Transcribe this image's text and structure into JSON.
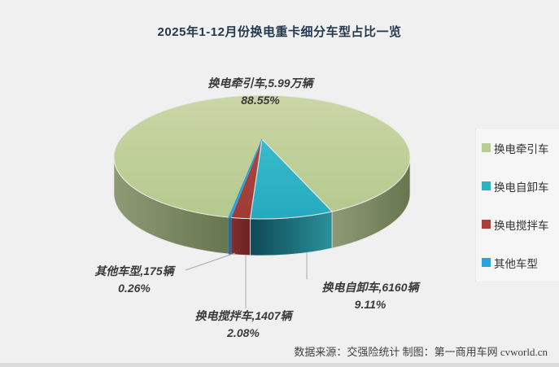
{
  "title": "2025年1-12月份换电重卡细分车型占比一览",
  "source_note": "数据来源：交强险统计 制图：第一商用车网 cvworld.cn",
  "chart_data": {
    "type": "pie",
    "style": "3d",
    "title": "2025年1-12月份换电重卡细分车型占比一览",
    "unit": "辆",
    "start_angle_deg": 193,
    "legend_position": "right",
    "slices": [
      {
        "name": "换电牵引车",
        "value": 59900,
        "value_label": "5.99万辆",
        "callout_label": "换电牵引车,5.99万辆",
        "pct": 88.55,
        "pct_label": "88.55%",
        "color": "#b9cc92",
        "top_from": "#cbd6a6",
        "top_to": "#b4c98d",
        "side_from": "#8d9a74",
        "side_to": "#68764f"
      },
      {
        "name": "换电自卸车",
        "value": 6160,
        "value_label": "6160辆",
        "callout_label": "换电自卸车,6160辆",
        "pct": 9.11,
        "pct_label": "9.11%",
        "color": "#2bb3c4",
        "top_from": "#38bcc9",
        "top_to": "#25a9bf",
        "side_from": "#0e4956",
        "side_to": "#2b919b"
      },
      {
        "name": "换电搅拌车",
        "value": 1407,
        "value_label": "1407辆",
        "callout_label": "换电搅拌车,1407辆",
        "pct": 2.08,
        "pct_label": "2.08%",
        "color": "#a6423c",
        "top_from": "#ad4741",
        "top_to": "#9d3b36",
        "side_from": "#832f2b",
        "side_to": "#6a2321"
      },
      {
        "name": "其他车型",
        "value": 175,
        "value_label": "175辆",
        "callout_label": "其他车型,175辆",
        "pct": 0.26,
        "pct_label": "0.26%",
        "color": "#29a3dd",
        "top_from": "#29a3dd",
        "top_to": "#29a3dd",
        "side_from": "#1b6fae",
        "side_to": "#1b6fae"
      }
    ]
  }
}
